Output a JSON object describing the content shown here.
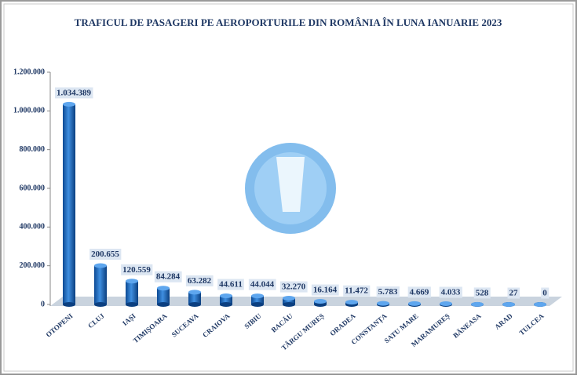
{
  "chart_data": {
    "type": "bar",
    "title": "TRAFICUL DE PASAGERI PE AEROPORTURILE DIN ROMÂNIA ÎN LUNA IANUARIE 2023",
    "categories": [
      "OTOPENI",
      "CLUJ",
      "IAȘI",
      "TIMIȘOARA",
      "SUCEAVA",
      "CRAIOVA",
      "SIBIU",
      "BACĂU",
      "TÂRGU MUREȘ",
      "ORADEA",
      "CONSTANȚA",
      "SATU MARE",
      "MARAMUREȘ",
      "BĂNEASA",
      "ARAD",
      "TULCEA"
    ],
    "values": [
      1034389,
      200655,
      120559,
      84284,
      63282,
      44611,
      44044,
      32270,
      16164,
      11472,
      5783,
      4669,
      4033,
      528,
      27,
      0
    ],
    "value_labels": [
      "1.034.389",
      "200.655",
      "120.559",
      "84.284",
      "63.282",
      "44.611",
      "44.044",
      "32.270",
      "16.164",
      "11.472",
      "5.783",
      "4.669",
      "4.033",
      "528",
      "27",
      "0"
    ],
    "color": "#1f6fc6",
    "ylim": [
      0,
      1200000
    ],
    "yticks": [
      0,
      {
        "value": 200000,
        "label": "200.000"
      },
      {
        "value": 400000,
        "label": "400.000"
      },
      {
        "value": 600000,
        "label": "600.000"
      },
      {
        "value": 800000,
        "label": "800.000"
      },
      {
        "value": 1000000,
        "label": "1.000.000"
      },
      {
        "value": 1200000,
        "label": "1.200.000"
      }
    ],
    "grid": false
  }
}
